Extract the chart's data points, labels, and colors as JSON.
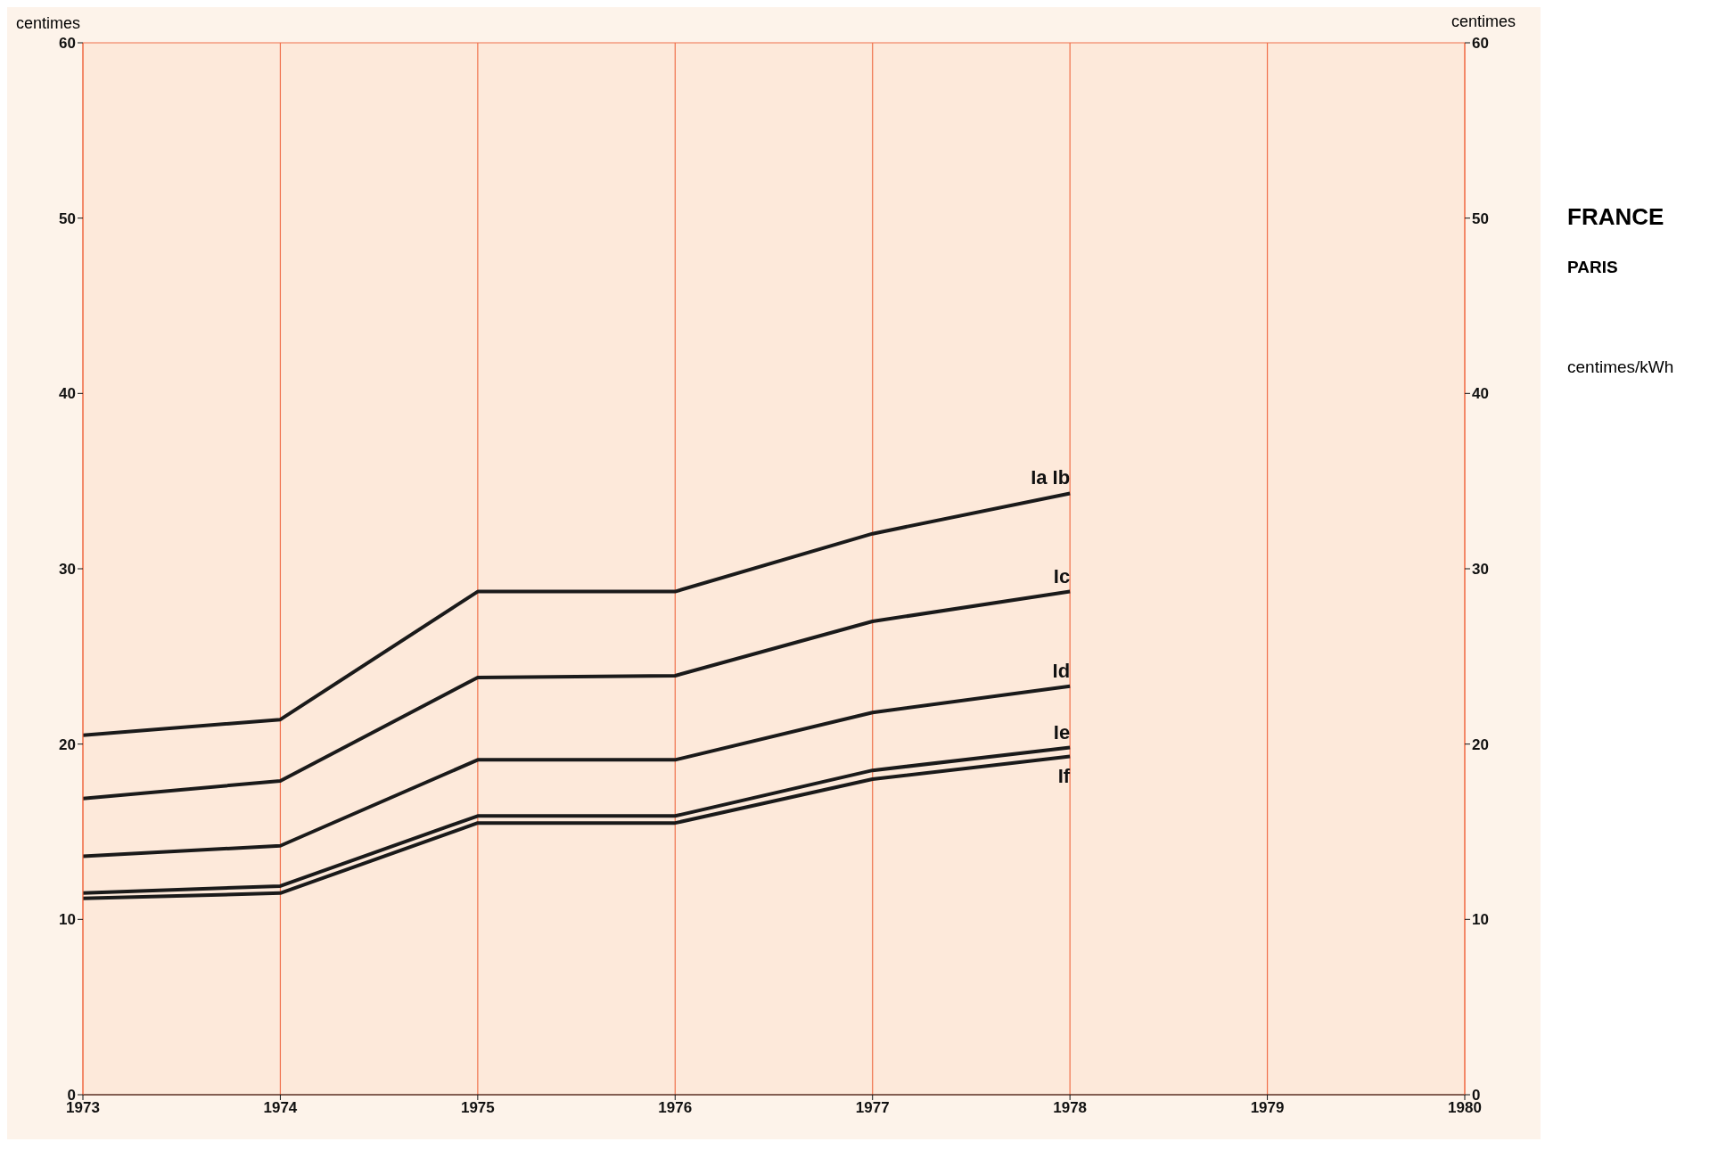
{
  "chart_data": {
    "type": "line",
    "ylabel": "centimes",
    "y2label": "centimes",
    "annotations": [
      "FRANCE",
      "PARIS",
      "centimes/kWh"
    ],
    "x": [
      1973,
      1974,
      1975,
      1976,
      1977,
      1978
    ],
    "series": [
      {
        "name": "Ia  Ib",
        "color": "#1a1a1a",
        "values": [
          20.5,
          21.4,
          28.7,
          28.7,
          32.0,
          34.3
        ]
      },
      {
        "name": "Ic",
        "color": "#1a1a1a",
        "values": [
          16.9,
          17.9,
          23.8,
          23.9,
          27.0,
          28.7
        ]
      },
      {
        "name": "Id",
        "color": "#1a1a1a",
        "values": [
          13.6,
          14.2,
          19.1,
          19.1,
          21.8,
          23.3
        ]
      },
      {
        "name": "Ie",
        "color": "#1a1a1a",
        "values": [
          11.5,
          11.9,
          15.9,
          15.9,
          18.5,
          19.8
        ]
      },
      {
        "name": "If",
        "color": "#1a1a1a",
        "values": [
          11.2,
          11.5,
          15.5,
          15.5,
          18.0,
          19.3
        ]
      }
    ],
    "xlim": [
      1973,
      1980
    ],
    "xticks": [
      1973,
      1974,
      1975,
      1976,
      1977,
      1978,
      1979,
      1980
    ],
    "ylim": [
      0,
      60
    ],
    "yticks": [
      0,
      10,
      20,
      30,
      40,
      50,
      60
    ],
    "y2lim": [
      0,
      60
    ],
    "y2ticks": [
      0,
      10,
      20,
      30,
      40,
      50,
      60
    ],
    "grid": true,
    "marker": "none",
    "line_style": "solid",
    "legend": false
  }
}
